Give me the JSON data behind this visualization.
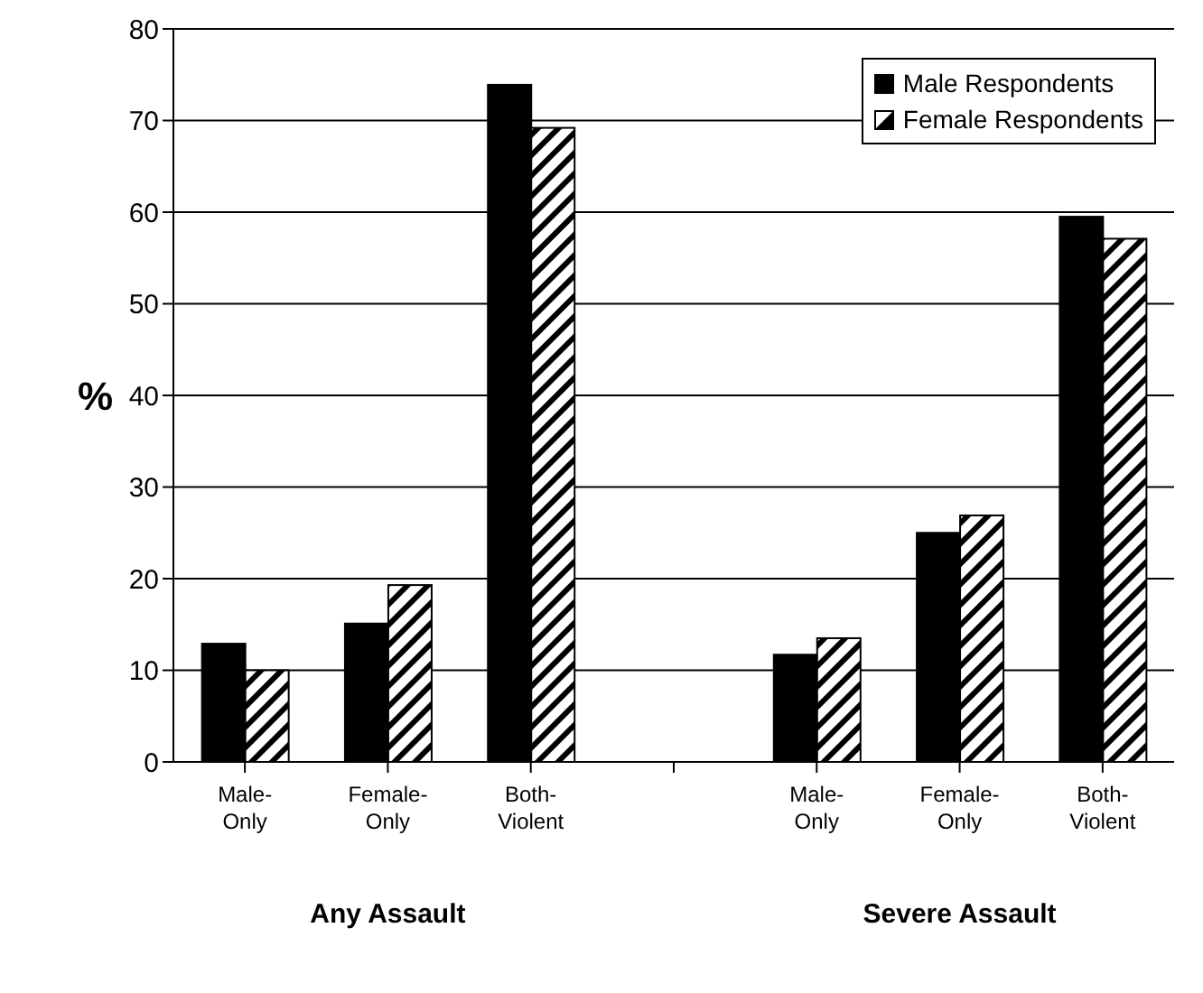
{
  "chart_data": {
    "type": "bar",
    "ylabel": "%",
    "categories": [
      "Male-Only",
      "Female-Only",
      "Both-Violent",
      null,
      "Male-Only",
      "Female-Only",
      "Both-Violent"
    ],
    "series": [
      {
        "name": "Male Respondents",
        "color": "#000000",
        "values": [
          12.9,
          15.1,
          73.9,
          null,
          11.7,
          25,
          59.5
        ]
      },
      {
        "name": "Female Respondents",
        "color": "#ffffff",
        "values": [
          10,
          19.3,
          69.2,
          null,
          13.5,
          26.9,
          57.1
        ]
      }
    ],
    "ylim": [
      0,
      80
    ],
    "yticks": [
      0,
      10,
      20,
      30,
      40,
      50,
      60,
      70,
      80
    ],
    "grid": "y",
    "legend": "top right",
    "annotations": [
      "Any Assault",
      "Severe Assault"
    ]
  }
}
